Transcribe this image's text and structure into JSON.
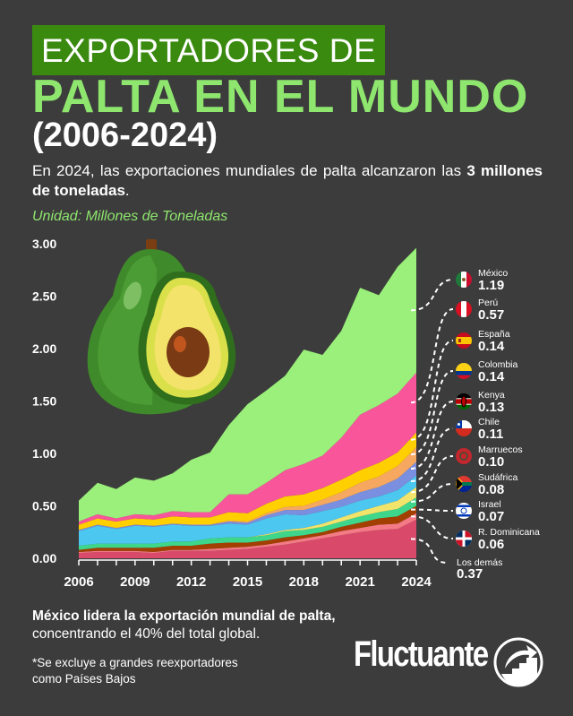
{
  "header": {
    "title_box": "EXPORTADORES DE",
    "title_main": "PALTA EN EL MUNDO",
    "title_years": "(2006-2024)",
    "subtitle_pre": "En 2024, las exportaciones mundiales de palta alcanzaron las ",
    "subtitle_bold": "3 millones de toneladas",
    "subtitle_post": ".",
    "unit": "Unidad: Millones de Toneladas"
  },
  "footer": {
    "note_bold": "México lidera la exportación mundial de palta,",
    "note_rest": "concentrando el 40% del total global.",
    "disclaimer_1": "*Se excluye a grandes reexportadores",
    "disclaimer_2": "como Países Bajos",
    "logo": "Fluctuante"
  },
  "colors": {
    "background": "#3c3c3c",
    "title_box": "#3a8a10",
    "accent_green": "#8ee66e"
  },
  "chart_data": {
    "type": "area",
    "stacked": true,
    "title": "EXPORTADORES DE PALTA EN EL MUNDO (2006-2024)",
    "ylabel": "Unidad: Millones de Toneladas",
    "ylim": [
      0,
      3
    ],
    "y_ticks": [
      "0.00",
      "0.50",
      "1.00",
      "1.50",
      "2.00",
      "2.50",
      "3.00"
    ],
    "x_ticks": [
      "2006",
      "2009",
      "2012",
      "2015",
      "2018",
      "2021",
      "2024"
    ],
    "x": [
      2006,
      2007,
      2008,
      2009,
      2010,
      2011,
      2012,
      2013,
      2014,
      2015,
      2016,
      2017,
      2018,
      2019,
      2020,
      2021,
      2022,
      2023,
      2024
    ],
    "grid": false,
    "legend_placement": "right",
    "series": [
      {
        "name": "Los demás",
        "label_2024": "0.37",
        "color": "#d94a6a",
        "flag": "none",
        "values": [
          0.05,
          0.06,
          0.06,
          0.06,
          0.05,
          0.07,
          0.07,
          0.07,
          0.08,
          0.09,
          0.11,
          0.13,
          0.16,
          0.19,
          0.22,
          0.25,
          0.27,
          0.28,
          0.37
        ]
      },
      {
        "name": "R. Dominicana",
        "label_2024": "0.06",
        "color": "#f47a86",
        "flag": "dominican-republic",
        "values": [
          0.01,
          0.01,
          0.01,
          0.01,
          0.01,
          0.01,
          0.01,
          0.02,
          0.02,
          0.02,
          0.02,
          0.03,
          0.03,
          0.03,
          0.04,
          0.04,
          0.05,
          0.05,
          0.06
        ]
      },
      {
        "name": "Israel",
        "label_2024": "0.07",
        "color": "#a33f00",
        "flag": "israel",
        "values": [
          0.02,
          0.03,
          0.03,
          0.03,
          0.04,
          0.04,
          0.04,
          0.05,
          0.05,
          0.04,
          0.04,
          0.04,
          0.03,
          0.03,
          0.04,
          0.05,
          0.06,
          0.07,
          0.07
        ]
      },
      {
        "name": "Sudáfrica",
        "label_2024": "0.08",
        "color": "#3ed68a",
        "flag": "south-africa",
        "values": [
          0.04,
          0.04,
          0.04,
          0.04,
          0.04,
          0.04,
          0.04,
          0.05,
          0.05,
          0.05,
          0.05,
          0.06,
          0.05,
          0.05,
          0.05,
          0.06,
          0.06,
          0.07,
          0.08
        ]
      },
      {
        "name": "Marruecos",
        "label_2024": "0.10",
        "color": "#f2e46a",
        "flag": "morocco",
        "values": [
          0,
          0,
          0,
          0,
          0,
          0,
          0,
          0,
          0,
          0,
          0.01,
          0.01,
          0.02,
          0.03,
          0.04,
          0.05,
          0.06,
          0.08,
          0.1
        ]
      },
      {
        "name": "Chile",
        "label_2024": "0.11",
        "color": "#4cc8f0",
        "flag": "chile",
        "values": [
          0.14,
          0.17,
          0.14,
          0.17,
          0.16,
          0.16,
          0.15,
          0.12,
          0.13,
          0.12,
          0.15,
          0.15,
          0.12,
          0.12,
          0.1,
          0.1,
          0.09,
          0.1,
          0.11
        ]
      },
      {
        "name": "Kenya",
        "label_2024": "0.13",
        "color": "#7b8fe0",
        "flag": "kenya",
        "values": [
          0.01,
          0.01,
          0.01,
          0.01,
          0.01,
          0.01,
          0.01,
          0.01,
          0.02,
          0.02,
          0.03,
          0.04,
          0.05,
          0.06,
          0.07,
          0.08,
          0.09,
          0.11,
          0.13
        ]
      },
      {
        "name": "Colombia",
        "label_2024": "0.14",
        "color": "#f6a860",
        "flag": "colombia",
        "values": [
          0,
          0,
          0,
          0,
          0,
          0,
          0,
          0,
          0.01,
          0.01,
          0.02,
          0.03,
          0.04,
          0.05,
          0.07,
          0.09,
          0.1,
          0.12,
          0.14
        ]
      },
      {
        "name": "España",
        "label_2024": "0.14",
        "color": "#ffcf00",
        "flag": "spain",
        "values": [
          0.05,
          0.06,
          0.06,
          0.06,
          0.06,
          0.07,
          0.07,
          0.07,
          0.08,
          0.08,
          0.09,
          0.1,
          0.11,
          0.11,
          0.12,
          0.12,
          0.13,
          0.13,
          0.14
        ]
      },
      {
        "name": "Perú",
        "label_2024": "0.57",
        "color": "#f8559a",
        "flag": "peru",
        "values": [
          0.03,
          0.04,
          0.03,
          0.04,
          0.04,
          0.05,
          0.05,
          0.05,
          0.17,
          0.18,
          0.2,
          0.25,
          0.29,
          0.31,
          0.4,
          0.53,
          0.55,
          0.56,
          0.57
        ]
      },
      {
        "name": "México",
        "label_2024": "1.19",
        "color": "#9af07a",
        "flag": "mexico",
        "values": [
          0.2,
          0.3,
          0.28,
          0.35,
          0.33,
          0.36,
          0.5,
          0.57,
          0.66,
          0.86,
          0.88,
          0.9,
          1.09,
          0.96,
          1.02,
          1.21,
          1.05,
          1.21,
          1.19
        ]
      }
    ]
  }
}
